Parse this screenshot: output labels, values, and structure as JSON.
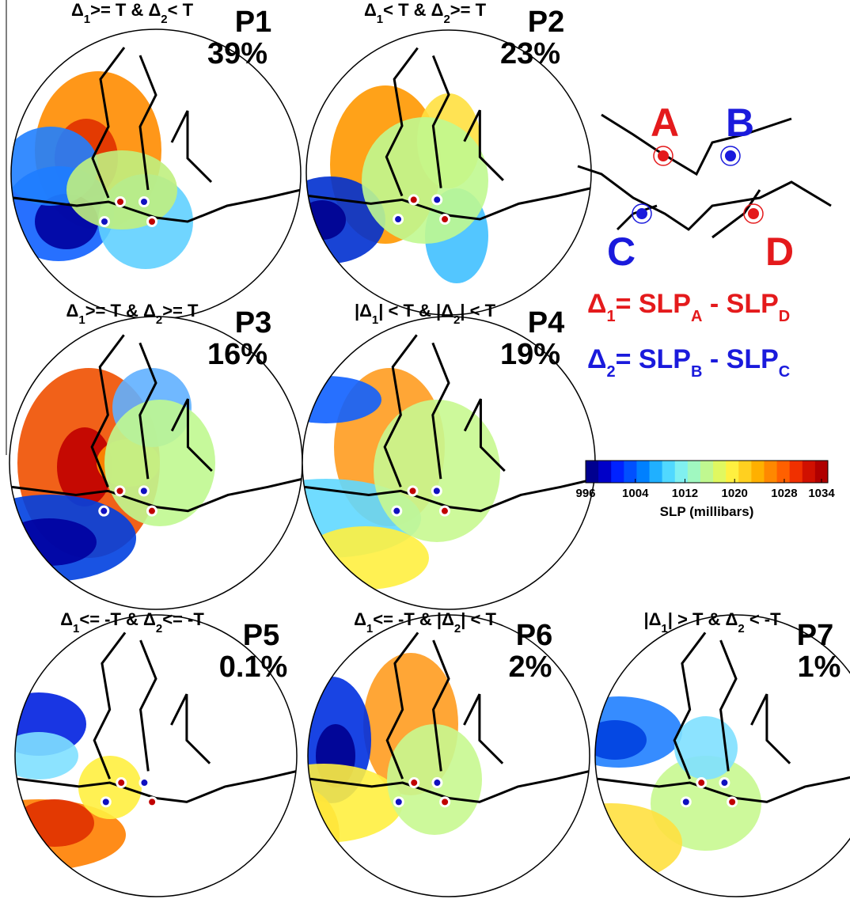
{
  "panels": [
    {
      "condition": [
        "Δ",
        "1",
        ">= T & Δ",
        "2",
        "< T"
      ],
      "label": "P1",
      "percent": "39%"
    },
    {
      "condition": [
        "Δ",
        "1",
        "< T & Δ",
        "2",
        ">= T"
      ],
      "label": "P2",
      "percent": "23%"
    },
    {
      "condition": [
        "Δ",
        "1",
        ">= T & Δ",
        "2",
        ">= T"
      ],
      "label": "P3",
      "percent": "16%"
    },
    {
      "condition": [
        "|Δ",
        "1",
        "| < T & |Δ",
        "2",
        "| < T"
      ],
      "label": "P4",
      "percent": "19%"
    },
    {
      "condition": [
        "Δ",
        "1",
        "<= -T & Δ",
        "2",
        "<= -T"
      ],
      "label": "P5",
      "percent": "0.1%"
    },
    {
      "condition": [
        "Δ",
        "1",
        "<= -T & |Δ",
        "2",
        "| < T"
      ],
      "label": "P6",
      "percent": "2%"
    },
    {
      "condition": [
        "|Δ",
        "1",
        "| > T & Δ",
        "2",
        " < -T"
      ],
      "label": "P7",
      "percent": "1%"
    }
  ],
  "legend": {
    "points": [
      {
        "label": "A",
        "color": "#e41a1c"
      },
      {
        "label": "B",
        "color": "#1a1adc"
      },
      {
        "label": "C",
        "color": "#1a1adc"
      },
      {
        "label": "D",
        "color": "#e41a1c"
      }
    ],
    "equations": [
      {
        "parts": [
          "Δ",
          "1",
          "= SLP",
          "A",
          " - SLP",
          "D"
        ],
        "color": "#e41a1c"
      },
      {
        "parts": [
          "Δ",
          "2",
          "= SLP",
          "B",
          " - SLP",
          "C"
        ],
        "color": "#1a1adc"
      }
    ]
  },
  "colorbar": {
    "min": 996,
    "max": 1034,
    "ticks": [
      996,
      1004,
      1012,
      1020,
      1028,
      1034
    ],
    "label": "SLP (millibars)",
    "colors": [
      "#00008f",
      "#0000c8",
      "#0022ff",
      "#0050ff",
      "#0080ff",
      "#20b0ff",
      "#50d8ff",
      "#80f0f0",
      "#a0f8c0",
      "#c0f890",
      "#e0f860",
      "#fff040",
      "#ffd020",
      "#ffb000",
      "#ff8800",
      "#ff6000",
      "#f03000",
      "#d01000",
      "#b00000"
    ]
  }
}
